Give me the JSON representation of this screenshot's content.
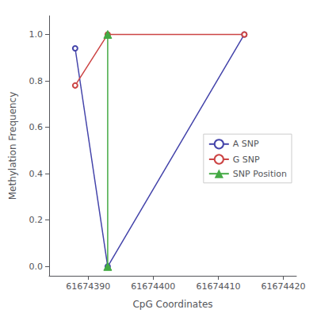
{
  "chart_data": {
    "type": "line",
    "xlabel": "CpG Coordinates",
    "ylabel": "Methylation Frequency",
    "series": [
      {
        "name": "A SNP",
        "color": "#4444aa",
        "marker": "circle",
        "line_style": "solid",
        "x": [
          61674388,
          61674393,
          61674414
        ],
        "values": [
          0.94,
          0.0,
          1.0
        ]
      },
      {
        "name": "G SNP",
        "color": "#cc4444",
        "marker": "circle",
        "line_style": "solid",
        "x": [
          61674388,
          61674393,
          61674414
        ],
        "values": [
          0.78,
          1.0,
          1.0
        ]
      },
      {
        "name": "SNP Position",
        "color": "#44aa44",
        "marker": "triangle",
        "line_style": "solid",
        "x": [
          61674393,
          61674393
        ],
        "values": [
          1.0,
          0.0
        ]
      }
    ],
    "xlim": [
      61674384,
      61674422
    ],
    "ylim": [
      -0.04,
      1.08
    ],
    "xticks": [
      61674390,
      61674400,
      61674410,
      61674420
    ],
    "yticks": [
      {
        "value": 0.0,
        "label": "0.0"
      },
      0.2,
      0.4,
      0.6,
      0.8,
      {
        "value": 1.0,
        "label": "1.0"
      }
    ],
    "grid": false,
    "legend": "center right"
  }
}
